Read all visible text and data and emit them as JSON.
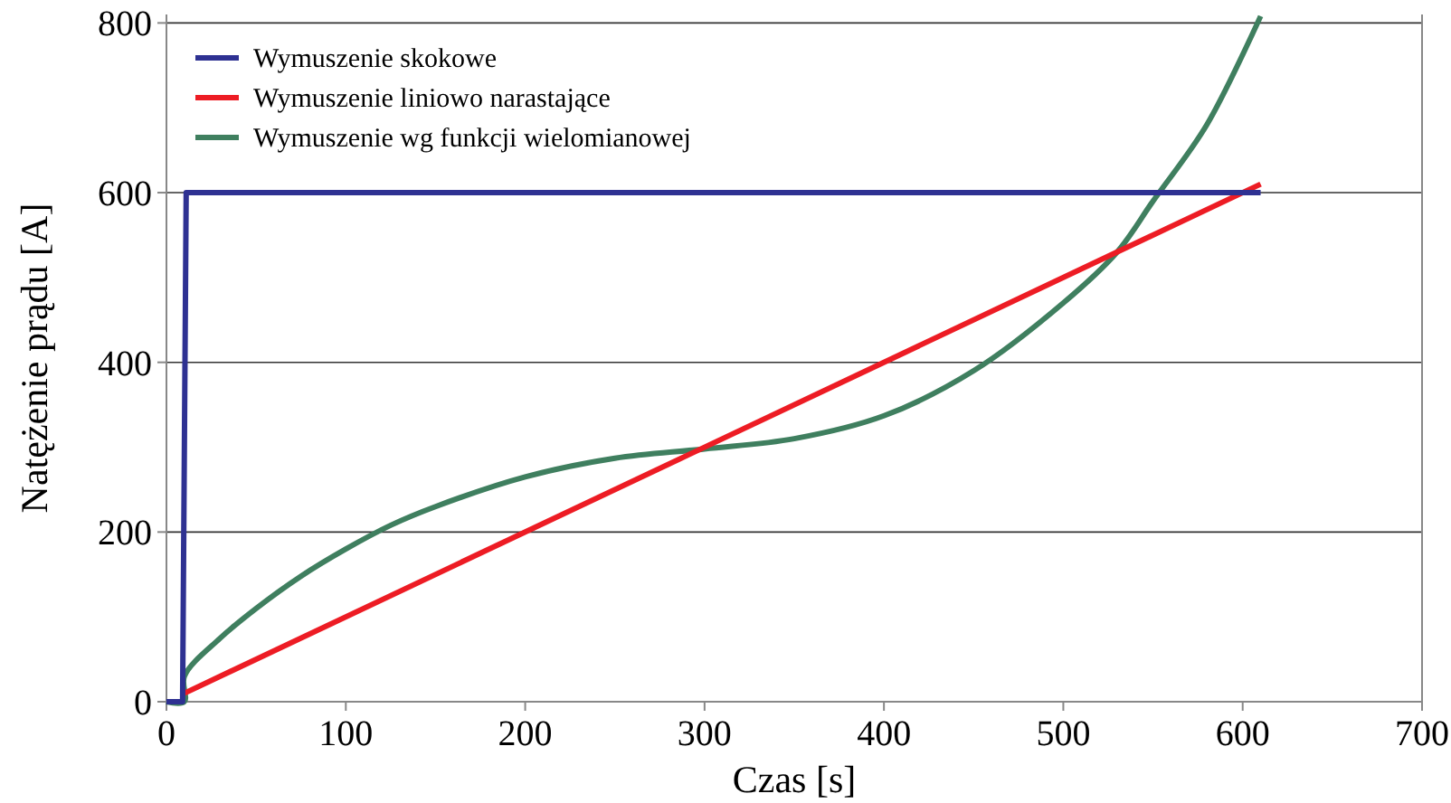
{
  "chart_data": {
    "type": "line",
    "xlabel": "Czas [s]",
    "ylabel": "Natężenie prądu [A]",
    "xlim": [
      0,
      700
    ],
    "ylim": [
      0,
      810
    ],
    "xticks": [
      0,
      100,
      200,
      300,
      400,
      500,
      600,
      700
    ],
    "yticks": [
      0,
      200,
      400,
      600,
      800
    ],
    "grid": "y",
    "legend": "top left",
    "line_style": "solid",
    "series": [
      {
        "name": "Wymuszenie skokowe",
        "color": "#2e3192",
        "x": [
          0,
          9,
          11,
          610
        ],
        "values": [
          0,
          0,
          600,
          600
        ]
      },
      {
        "name": "Wymuszenie liniowo narastające",
        "color": "#ed1c24",
        "x": [
          10,
          610
        ],
        "values": [
          10,
          610
        ]
      },
      {
        "name": "Wymuszenie wg funkcji wielomianowej",
        "color": "#3f7f5f",
        "x": [
          0,
          10,
          10,
          30,
          50,
          75,
          100,
          125,
          150,
          200,
          250,
          300,
          350,
          400,
          450,
          500,
          530,
          550,
          580,
          610
        ],
        "values": [
          0,
          0,
          30,
          75,
          110,
          148,
          180,
          208,
          230,
          265,
          287,
          298,
          310,
          337,
          390,
          470,
          530,
          590,
          680,
          808
        ]
      }
    ]
  }
}
